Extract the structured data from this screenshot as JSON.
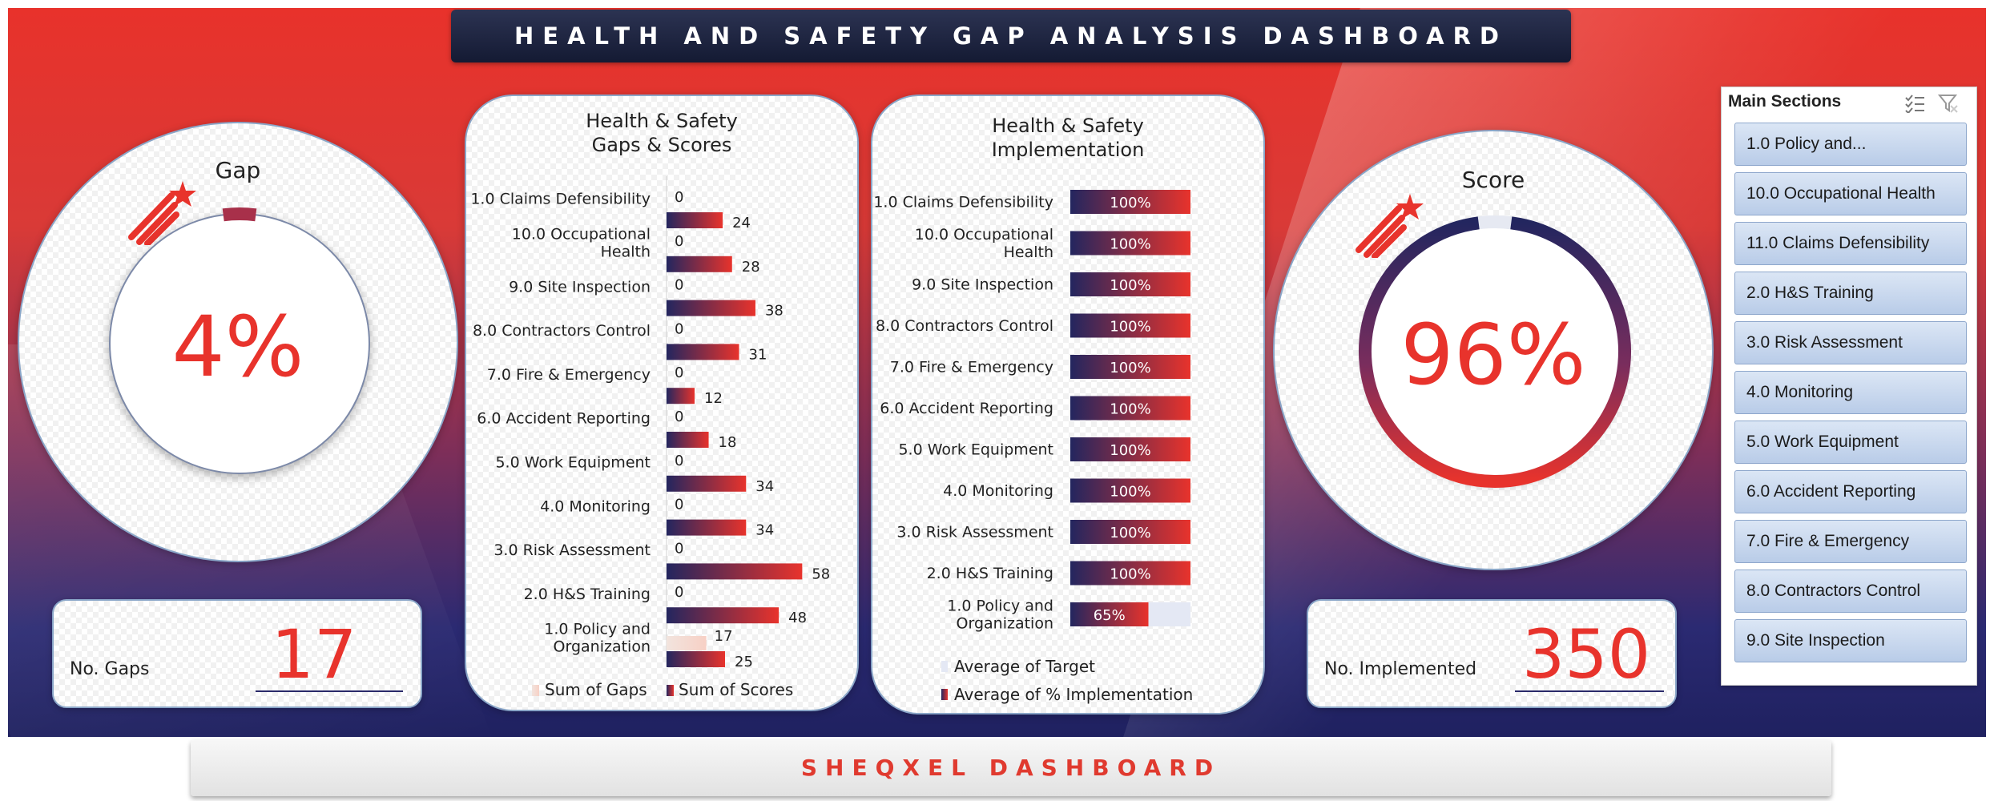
{
  "header": {
    "title": "HEALTH AND SAFETY GAP ANALYSIS DASHBOARD"
  },
  "footer": {
    "brand": "SHEQXEL DASHBOARD"
  },
  "gap_gauge": {
    "title": "Gap",
    "value_label": "4%",
    "fraction": 0.04
  },
  "score_gauge": {
    "title": "Score",
    "value_label": "96%",
    "fraction": 0.96
  },
  "kpi_gaps": {
    "label": "No. Gaps",
    "value": "17"
  },
  "kpi_implemented": {
    "label": "No. Implemented",
    "value": "350"
  },
  "colors": {
    "red": "#e8332c",
    "navy": "#23265f",
    "panel_border": "#8aa6c8",
    "target_bar": "#e4e8f4"
  },
  "slicer": {
    "title": "Main Sections",
    "multi_select_icon": "multi-select-icon",
    "clear_filter_icon": "clear-filter-icon",
    "items": [
      "1.0 Policy and...",
      "10.0 Occupational Health",
      "11.0 Claims Defensibility",
      "2.0 H&S Training",
      "3.0 Risk Assessment",
      "4.0 Monitoring",
      "5.0 Work Equipment",
      "6.0 Accident Reporting",
      "7.0 Fire & Emergency",
      "8.0 Contractors  Control",
      "9.0 Site Inspection"
    ]
  },
  "chart_data": [
    {
      "type": "bar",
      "orientation": "horizontal",
      "title": "Health & Safety Gaps & Scores",
      "title_lines": [
        "Health & Safety",
        "Gaps & Scores"
      ],
      "categories": [
        [
          "1.0 Claims Defensibility"
        ],
        [
          "10.0 Occupational",
          "Health"
        ],
        [
          "9.0 Site Inspection"
        ],
        [
          "8.0 Contractors Control"
        ],
        [
          "7.0 Fire & Emergency"
        ],
        [
          "6.0 Accident Reporting"
        ],
        [
          "5.0 Work Equipment"
        ],
        [
          "4.0 Monitoring"
        ],
        [
          "3.0 Risk Assessment"
        ],
        [
          "2.0 H&S Training"
        ],
        [
          "1.0 Policy and",
          "Organization"
        ]
      ],
      "series": [
        {
          "name": "Sum of Gaps",
          "values": [
            0,
            0,
            0,
            0,
            0,
            0,
            0,
            0,
            0,
            0,
            17
          ]
        },
        {
          "name": "Sum of Scores",
          "values": [
            24,
            28,
            38,
            31,
            12,
            18,
            34,
            34,
            58,
            48,
            25
          ]
        }
      ],
      "legend": "bottom",
      "grid": false
    },
    {
      "type": "bar",
      "orientation": "horizontal",
      "title": "Health & Safety Implementation",
      "title_lines": [
        "Health & Safety",
        "Implementation"
      ],
      "categories": [
        [
          "1.0 Claims Defensibility"
        ],
        [
          "10.0 Occupational",
          "Health"
        ],
        [
          "9.0 Site Inspection"
        ],
        [
          "8.0 Contractors Control"
        ],
        [
          "7.0 Fire & Emergency"
        ],
        [
          "6.0 Accident Reporting"
        ],
        [
          "5.0 Work Equipment"
        ],
        [
          "4.0 Monitoring"
        ],
        [
          "3.0 Risk Assessment"
        ],
        [
          "2.0 H&S Training"
        ],
        [
          "1.0 Policy and",
          "Organization"
        ]
      ],
      "series": [
        {
          "name": "Average of Target",
          "values": [
            1,
            1,
            1,
            1,
            1,
            1,
            1,
            1,
            1,
            1,
            1
          ]
        },
        {
          "name": "Average of % Implementation",
          "values": [
            1,
            1,
            1,
            1,
            1,
            1,
            1,
            1,
            1,
            1,
            0.65
          ]
        }
      ],
      "data_labels": [
        "100%",
        "100%",
        "100%",
        "100%",
        "100%",
        "100%",
        "100%",
        "100%",
        "100%",
        "100%",
        "65%"
      ],
      "legend": "bottom",
      "grid": false
    }
  ]
}
